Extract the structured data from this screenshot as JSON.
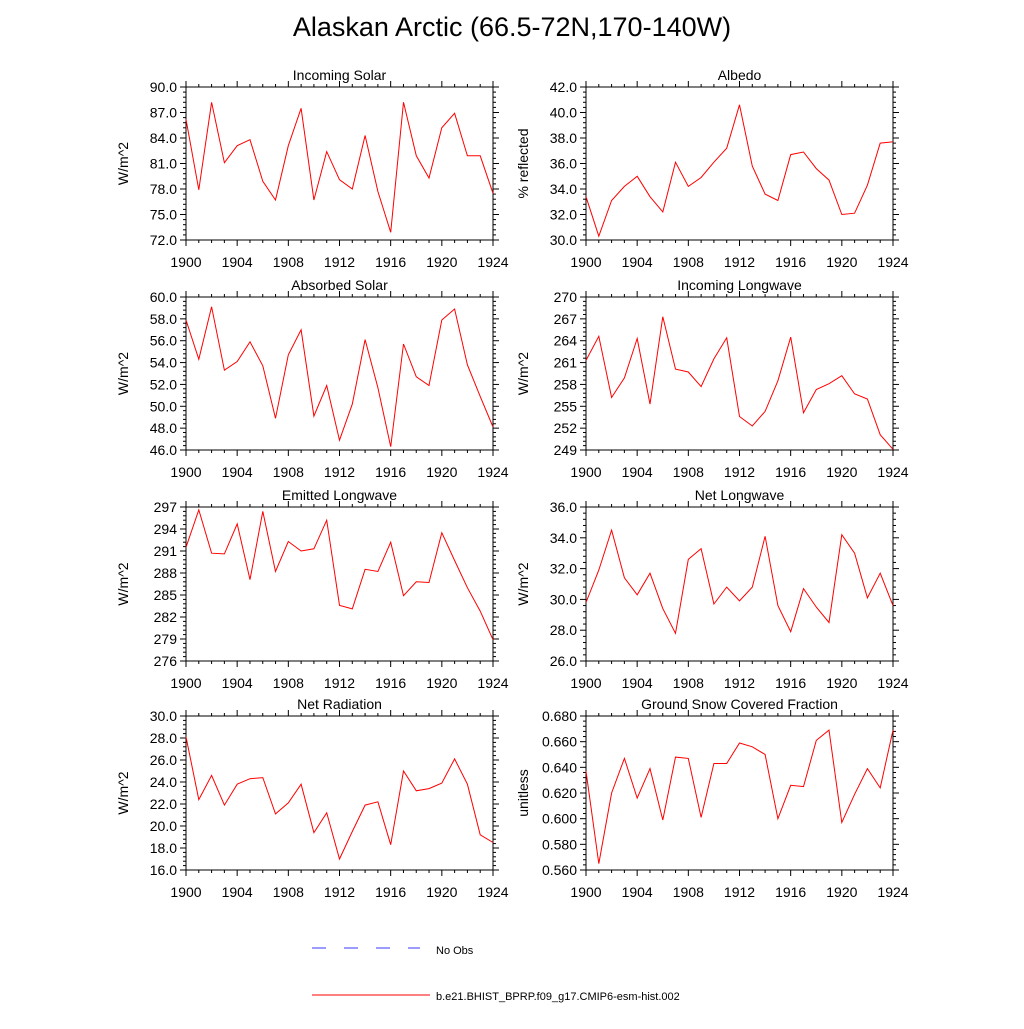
{
  "title": "Alaskan Arctic (66.5-72N,170-140W)",
  "colors": {
    "model_line": "#ff0000",
    "obs_line": "#3a3aff",
    "axis": "#000000"
  },
  "legend": {
    "obs_label": "No Obs",
    "model_label": "b.e21.BHIST_BPRP.f09_g17.CMIP6-esm-hist.002"
  },
  "chart_data": [
    {
      "type": "line",
      "title": "Incoming Solar",
      "ylabel": "W/m^2",
      "xlim": [
        1900,
        1924
      ],
      "ylim": [
        72.0,
        90.0
      ],
      "yticks": [
        "72.0",
        "75.0",
        "78.0",
        "81.0",
        "84.0",
        "87.0",
        "90.0"
      ],
      "xticks": [
        "1900",
        "1904",
        "1908",
        "1912",
        "1916",
        "1920",
        "1924"
      ],
      "series": [
        {
          "x": [
            1900,
            1901,
            1902,
            1903,
            1904,
            1905,
            1906,
            1907,
            1908,
            1909,
            1910,
            1911,
            1912,
            1913,
            1914,
            1915,
            1916,
            1917,
            1918,
            1919,
            1920,
            1921,
            1922,
            1923,
            1924
          ],
          "values": [
            86.2,
            77.9,
            88.2,
            81.1,
            83.1,
            83.8,
            78.9,
            76.7,
            83.1,
            87.5,
            76.7,
            82.4,
            79.1,
            78.0,
            84.3,
            77.7,
            72.9,
            88.2,
            81.9,
            79.3,
            85.2,
            86.9,
            81.9,
            81.9,
            77.5
          ]
        }
      ]
    },
    {
      "type": "line",
      "title": "Albedo",
      "ylabel": "% reflected",
      "xlim": [
        1900,
        1924
      ],
      "ylim": [
        30.0,
        42.0
      ],
      "yticks": [
        "30.0",
        "32.0",
        "34.0",
        "36.0",
        "38.0",
        "40.0",
        "42.0"
      ],
      "xticks": [
        "1900",
        "1904",
        "1908",
        "1912",
        "1916",
        "1920",
        "1924"
      ],
      "series": [
        {
          "x": [
            1900,
            1901,
            1902,
            1903,
            1904,
            1905,
            1906,
            1907,
            1908,
            1909,
            1910,
            1911,
            1912,
            1913,
            1914,
            1915,
            1916,
            1917,
            1918,
            1919,
            1920,
            1921,
            1922,
            1923,
            1924
          ],
          "values": [
            33.4,
            30.3,
            33.1,
            34.2,
            35.0,
            33.4,
            32.2,
            36.1,
            34.2,
            34.9,
            36.1,
            37.2,
            40.6,
            35.8,
            33.6,
            33.1,
            36.7,
            36.9,
            35.6,
            34.7,
            32.0,
            32.1,
            34.3,
            37.6,
            37.7
          ]
        }
      ]
    },
    {
      "type": "line",
      "title": "Absorbed Solar",
      "ylabel": "W/m^2",
      "xlim": [
        1900,
        1924
      ],
      "ylim": [
        46.0,
        60.0
      ],
      "yticks": [
        "46.0",
        "48.0",
        "50.0",
        "52.0",
        "54.0",
        "56.0",
        "58.0",
        "60.0"
      ],
      "xticks": [
        "1900",
        "1904",
        "1908",
        "1912",
        "1916",
        "1920",
        "1924"
      ],
      "series": [
        {
          "x": [
            1900,
            1901,
            1902,
            1903,
            1904,
            1905,
            1906,
            1907,
            1908,
            1909,
            1910,
            1911,
            1912,
            1913,
            1914,
            1915,
            1916,
            1917,
            1918,
            1919,
            1920,
            1921,
            1922,
            1923,
            1924
          ],
          "values": [
            57.9,
            54.3,
            59.1,
            53.3,
            54.1,
            55.9,
            53.7,
            48.9,
            54.7,
            57.0,
            49.1,
            51.9,
            46.9,
            50.2,
            56.1,
            51.7,
            46.3,
            55.7,
            52.7,
            51.9,
            57.9,
            58.9,
            53.8,
            50.9,
            48.1
          ]
        }
      ]
    },
    {
      "type": "line",
      "title": "Incoming Longwave",
      "ylabel": "W/m^2",
      "xlim": [
        1900,
        1924
      ],
      "ylim": [
        249,
        270
      ],
      "yticks": [
        "249",
        "252",
        "255",
        "258",
        "261",
        "264",
        "267",
        "270"
      ],
      "xticks": [
        "1900",
        "1904",
        "1908",
        "1912",
        "1916",
        "1920",
        "1924"
      ],
      "series": [
        {
          "x": [
            1900,
            1901,
            1902,
            1903,
            1904,
            1905,
            1906,
            1907,
            1908,
            1909,
            1910,
            1911,
            1912,
            1913,
            1914,
            1915,
            1916,
            1917,
            1918,
            1919,
            1920,
            1921,
            1922,
            1923,
            1924
          ],
          "values": [
            261.3,
            264.6,
            256.2,
            258.9,
            264.3,
            255.3,
            267.3,
            260.1,
            259.7,
            257.7,
            261.5,
            264.4,
            253.6,
            252.3,
            254.3,
            258.5,
            264.5,
            254.1,
            257.3,
            258.1,
            259.2,
            256.7,
            256.0,
            251.1,
            249.1
          ]
        }
      ]
    },
    {
      "type": "line",
      "title": "Emitted Longwave",
      "ylabel": "W/m^2",
      "xlim": [
        1900,
        1924
      ],
      "ylim": [
        276,
        297
      ],
      "yticks": [
        "276",
        "279",
        "282",
        "285",
        "288",
        "291",
        "294",
        "297"
      ],
      "xticks": [
        "1900",
        "1904",
        "1908",
        "1912",
        "1916",
        "1920",
        "1924"
      ],
      "series": [
        {
          "x": [
            1900,
            1901,
            1902,
            1903,
            1904,
            1905,
            1906,
            1907,
            1908,
            1909,
            1910,
            1911,
            1912,
            1913,
            1914,
            1915,
            1916,
            1917,
            1918,
            1919,
            1920,
            1921,
            1922,
            1923,
            1924
          ],
          "values": [
            291.5,
            296.6,
            290.7,
            290.6,
            294.7,
            287.1,
            296.4,
            288.2,
            292.3,
            291.0,
            291.3,
            295.2,
            283.6,
            283.1,
            288.5,
            288.2,
            292.2,
            284.9,
            286.8,
            286.7,
            293.5,
            289.7,
            286.0,
            282.8,
            278.9
          ]
        }
      ]
    },
    {
      "type": "line",
      "title": "Net Longwave",
      "ylabel": "W/m^2",
      "xlim": [
        1900,
        1924
      ],
      "ylim": [
        26.0,
        36.0
      ],
      "yticks": [
        "26.0",
        "28.0",
        "30.0",
        "32.0",
        "34.0",
        "36.0"
      ],
      "xticks": [
        "1900",
        "1904",
        "1908",
        "1912",
        "1916",
        "1920",
        "1924"
      ],
      "series": [
        {
          "x": [
            1900,
            1901,
            1902,
            1903,
            1904,
            1905,
            1906,
            1907,
            1908,
            1909,
            1910,
            1911,
            1912,
            1913,
            1914,
            1915,
            1916,
            1917,
            1918,
            1919,
            1920,
            1921,
            1922,
            1923,
            1924
          ],
          "values": [
            29.8,
            31.9,
            34.5,
            31.4,
            30.3,
            31.7,
            29.4,
            27.8,
            32.6,
            33.3,
            29.7,
            30.8,
            29.9,
            30.8,
            34.1,
            29.6,
            27.9,
            30.7,
            29.5,
            28.5,
            34.2,
            33.0,
            30.1,
            31.7,
            29.6
          ]
        }
      ]
    },
    {
      "type": "line",
      "title": "Net Radiation",
      "ylabel": "W/m^2",
      "xlim": [
        1900,
        1924
      ],
      "ylim": [
        16.0,
        30.0
      ],
      "yticks": [
        "16.0",
        "18.0",
        "20.0",
        "22.0",
        "24.0",
        "26.0",
        "28.0",
        "30.0"
      ],
      "xticks": [
        "1900",
        "1904",
        "1908",
        "1912",
        "1916",
        "1920",
        "1924"
      ],
      "series": [
        {
          "x": [
            1900,
            1901,
            1902,
            1903,
            1904,
            1905,
            1906,
            1907,
            1908,
            1909,
            1910,
            1911,
            1912,
            1913,
            1914,
            1915,
            1916,
            1917,
            1918,
            1919,
            1920,
            1921,
            1922,
            1923,
            1924
          ],
          "values": [
            28.1,
            22.4,
            24.6,
            21.9,
            23.8,
            24.3,
            24.4,
            21.1,
            22.1,
            23.8,
            19.4,
            21.2,
            17.0,
            19.5,
            21.9,
            22.2,
            18.3,
            25.0,
            23.2,
            23.4,
            23.9,
            26.1,
            23.8,
            19.2,
            18.5
          ]
        }
      ]
    },
    {
      "type": "line",
      "title": "Ground Snow Covered Fraction",
      "ylabel": "unitless",
      "xlim": [
        1900,
        1924
      ],
      "ylim": [
        0.56,
        0.68
      ],
      "yticks": [
        "0.560",
        "0.580",
        "0.600",
        "0.620",
        "0.640",
        "0.660",
        "0.680"
      ],
      "xticks": [
        "1900",
        "1904",
        "1908",
        "1912",
        "1916",
        "1920",
        "1924"
      ],
      "series": [
        {
          "x": [
            1900,
            1901,
            1902,
            1903,
            1904,
            1905,
            1906,
            1907,
            1908,
            1909,
            1910,
            1911,
            1912,
            1913,
            1914,
            1915,
            1916,
            1917,
            1918,
            1919,
            1920,
            1921,
            1922,
            1923,
            1924
          ],
          "values": [
            0.637,
            0.565,
            0.62,
            0.647,
            0.616,
            0.639,
            0.599,
            0.648,
            0.647,
            0.601,
            0.643,
            0.643,
            0.659,
            0.656,
            0.65,
            0.6,
            0.626,
            0.625,
            0.661,
            0.669,
            0.597,
            0.619,
            0.639,
            0.624,
            0.669
          ]
        }
      ]
    }
  ]
}
